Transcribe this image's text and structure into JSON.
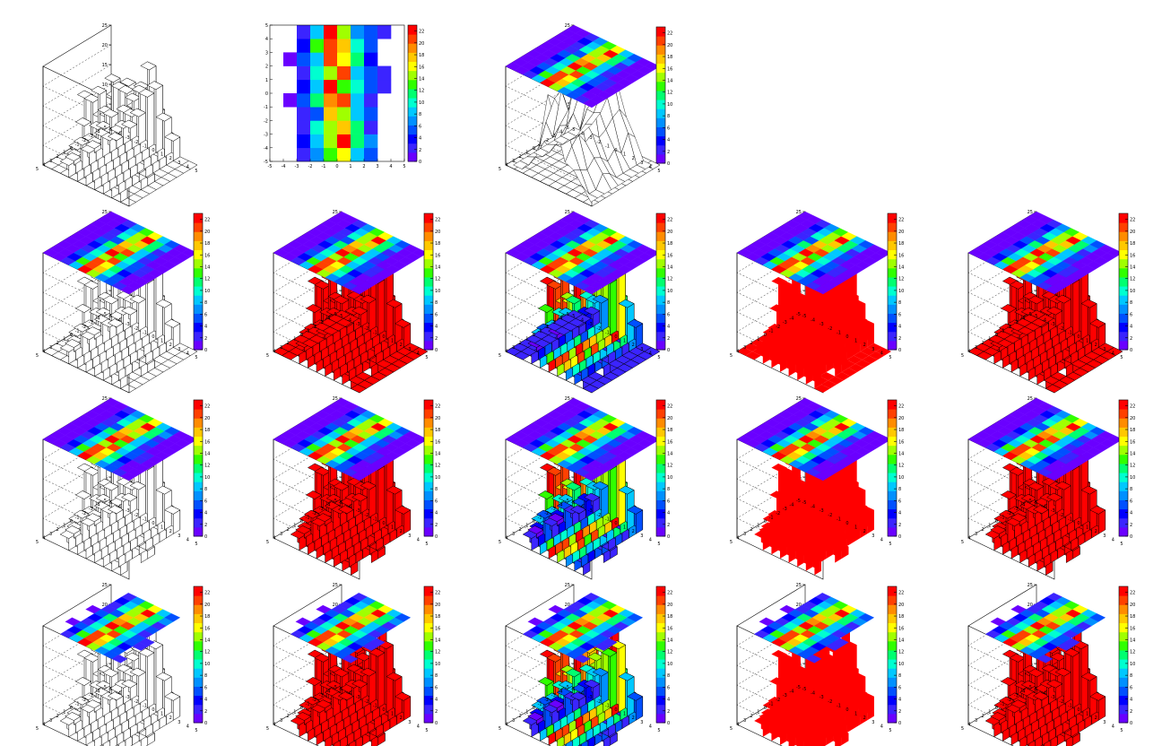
{
  "chart_data": {
    "type": "heatmap",
    "layout": {
      "rows": 4,
      "cols": 5
    },
    "xlim": [
      -5,
      5
    ],
    "ylim": [
      -5,
      5
    ],
    "zlim": [
      0,
      25
    ],
    "z_ticks": [
      0,
      5,
      10,
      15,
      20,
      25
    ],
    "xy_ticks": [
      -5,
      -4,
      -3,
      -2,
      -1,
      0,
      1,
      2,
      3,
      4,
      5
    ],
    "colorbar_ticks": [
      0,
      2,
      4,
      6,
      8,
      10,
      12,
      14,
      16,
      18,
      20,
      22
    ],
    "colorbar_range": [
      0,
      23
    ],
    "x_bin_centers": [
      -4.5,
      -3.5,
      -2.5,
      -1.5,
      -0.5,
      0.5,
      1.5,
      2.5,
      3.5,
      4.5
    ],
    "y_bin_centers": [
      -4.5,
      -3.5,
      -2.5,
      -1.5,
      -0.5,
      0.5,
      1.5,
      2.5,
      3.5,
      4.5
    ],
    "values": [
      [
        0,
        0,
        3,
        7,
        13,
        16,
        9,
        5,
        0,
        0
      ],
      [
        0,
        0,
        4,
        8,
        15,
        22,
        12,
        7,
        0,
        0
      ],
      [
        0,
        0,
        2,
        10,
        14,
        18,
        11,
        3,
        0,
        0
      ],
      [
        0,
        0,
        3,
        6,
        17,
        14,
        9,
        5,
        0,
        0
      ],
      [
        0,
        1,
        5,
        11,
        19,
        21,
        8,
        3,
        0,
        0
      ],
      [
        0,
        0,
        4,
        9,
        22,
        13,
        10,
        5,
        2,
        0
      ],
      [
        0,
        0,
        3,
        10,
        15,
        20,
        9,
        6,
        3,
        0
      ],
      [
        0,
        1,
        6,
        8,
        21,
        16,
        12,
        4,
        0,
        0
      ],
      [
        0,
        0,
        4,
        13,
        20,
        17,
        10,
        5,
        0,
        0
      ],
      [
        0,
        0,
        3,
        8,
        22,
        15,
        7,
        6,
        3,
        0
      ]
    ],
    "panels": [
      {
        "row": 0,
        "col": 0,
        "draw": "lego",
        "fill": "white",
        "top_map": false,
        "colorbar": false
      },
      {
        "row": 0,
        "col": 1,
        "draw": "colz",
        "colorbar": true
      },
      {
        "row": 0,
        "col": 2,
        "draw": "surf-topmap",
        "colorbar": true
      },
      {
        "row": 1,
        "col": 0,
        "draw": "lego",
        "fill": "white",
        "top_map": true,
        "colorbar": true,
        "zero_floor": true
      },
      {
        "row": 1,
        "col": 1,
        "draw": "lego",
        "fill": "red",
        "top_map": true,
        "colorbar": true,
        "zero_floor": true,
        "edges": true
      },
      {
        "row": 1,
        "col": 2,
        "draw": "lego",
        "fill": "palette",
        "top_map": true,
        "colorbar": true,
        "zero_floor": true,
        "edges": true
      },
      {
        "row": 1,
        "col": 3,
        "draw": "lego",
        "fill": "red",
        "top_map": true,
        "colorbar": true,
        "zero_floor": true,
        "edges": false
      },
      {
        "row": 1,
        "col": 4,
        "draw": "lego",
        "fill": "red",
        "top_map": true,
        "colorbar": true,
        "zero_floor": true,
        "edges": true
      },
      {
        "row": 2,
        "col": 0,
        "draw": "lego",
        "fill": "white",
        "top_map": true,
        "colorbar": true,
        "zero_floor": false
      },
      {
        "row": 2,
        "col": 1,
        "draw": "lego",
        "fill": "red",
        "top_map": true,
        "colorbar": true,
        "zero_floor": false,
        "edges": true
      },
      {
        "row": 2,
        "col": 2,
        "draw": "lego",
        "fill": "palette",
        "top_map": true,
        "colorbar": true,
        "zero_floor": false,
        "edges": true
      },
      {
        "row": 2,
        "col": 3,
        "draw": "lego",
        "fill": "red",
        "top_map": true,
        "colorbar": true,
        "zero_floor": false,
        "edges": false
      },
      {
        "row": 2,
        "col": 4,
        "draw": "lego",
        "fill": "red",
        "top_map": true,
        "colorbar": true,
        "zero_floor": false,
        "edges": true
      },
      {
        "row": 3,
        "col": 0,
        "draw": "lego",
        "fill": "white",
        "top_map": "clipped",
        "colorbar": true,
        "zero_floor": false
      },
      {
        "row": 3,
        "col": 1,
        "draw": "lego",
        "fill": "red",
        "top_map": "clipped",
        "colorbar": true,
        "zero_floor": false,
        "edges": true
      },
      {
        "row": 3,
        "col": 2,
        "draw": "lego",
        "fill": "palette",
        "top_map": "clipped",
        "colorbar": true,
        "zero_floor": false,
        "edges": true
      },
      {
        "row": 3,
        "col": 3,
        "draw": "lego",
        "fill": "red",
        "top_map": "clipped",
        "colorbar": true,
        "zero_floor": false,
        "edges": false
      },
      {
        "row": 3,
        "col": 4,
        "draw": "lego",
        "fill": "red",
        "top_map": "clipped",
        "colorbar": true,
        "zero_floor": false,
        "edges": true
      }
    ],
    "colors": {
      "palette": [
        "#6a00ff",
        "#3b24ff",
        "#0000ff",
        "#0050ff",
        "#0090ff",
        "#00c8ff",
        "#00ffd0",
        "#00ff70",
        "#30ff00",
        "#a0ff00",
        "#ffff00",
        "#ffc800",
        "#ff8c00",
        "#ff4000",
        "#ff0000"
      ],
      "lego_red": "#ff0000",
      "lego_white": "#ffffff",
      "edge": "#000000"
    }
  }
}
